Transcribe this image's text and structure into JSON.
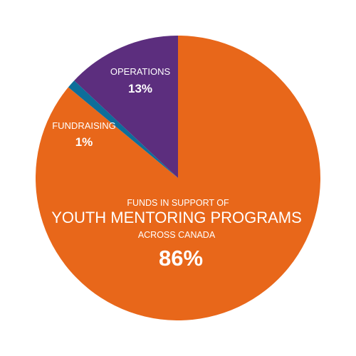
{
  "chart_data": {
    "type": "pie",
    "title": "",
    "slices": [
      {
        "label": "FUNDS IN SUPPORT OF YOUTH MENTORING PROGRAMS ACROSS CANADA",
        "label_lines": [
          "FUNDS IN SUPPORT OF",
          "YOUTH MENTORING PROGRAMS",
          "ACROSS CANADA"
        ],
        "value": 86,
        "value_label": "86%",
        "color": "#E8671A"
      },
      {
        "label": "FUNDRAISING",
        "label_lines": [
          "FUNDRAISING"
        ],
        "value": 1,
        "value_label": "1%",
        "color": "#0E6E9A"
      },
      {
        "label": "OPERATIONS",
        "label_lines": [
          "OPERATIONS"
        ],
        "value": 13,
        "value_label": "13%",
        "color": "#5C2E7E"
      }
    ]
  }
}
